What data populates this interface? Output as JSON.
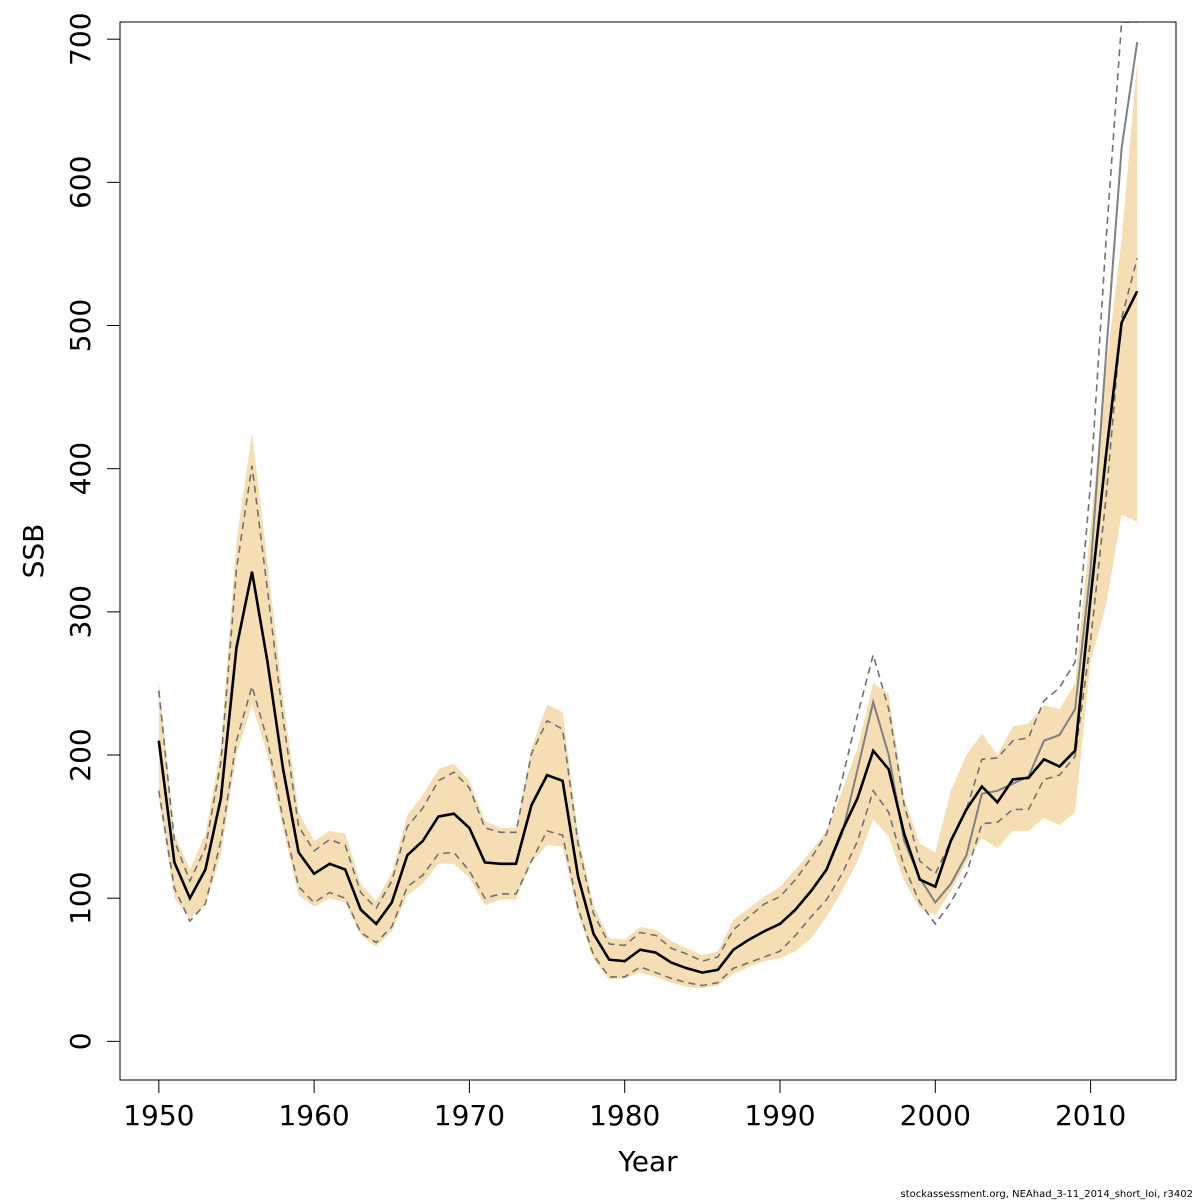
{
  "colors": {
    "band_fill": "#f5deb3",
    "main_line": "#000000",
    "prev_line": "#808080",
    "ci_dash": "#707070"
  },
  "chart_data": {
    "type": "line",
    "xlabel": "Year",
    "ylabel": "SSB",
    "xlim": [
      1947.5,
      2015.5
    ],
    "ylim": [
      -27,
      712
    ],
    "xticks": [
      1950,
      1960,
      1970,
      1980,
      1990,
      2000,
      2010
    ],
    "yticks": [
      0,
      100,
      200,
      300,
      400,
      500,
      600,
      700
    ],
    "grid": false,
    "legend": "none",
    "x": [
      1950,
      1951,
      1952,
      1953,
      1954,
      1955,
      1956,
      1957,
      1958,
      1959,
      1960,
      1961,
      1962,
      1963,
      1964,
      1965,
      1966,
      1967,
      1968,
      1969,
      1970,
      1971,
      1972,
      1973,
      1974,
      1975,
      1976,
      1977,
      1978,
      1979,
      1980,
      1981,
      1982,
      1983,
      1984,
      1985,
      1986,
      1987,
      1988,
      1989,
      1990,
      1991,
      1992,
      1993,
      1994,
      1995,
      1996,
      1997,
      1998,
      1999,
      2000,
      2001,
      2002,
      2003,
      2004,
      2005,
      2006,
      2007,
      2008,
      2009,
      2010,
      2011,
      2012,
      2013
    ],
    "series": [
      {
        "values": [
          210,
          125,
          100,
          120,
          170,
          275,
          328,
          265,
          190,
          132,
          117,
          124,
          120,
          92,
          82,
          97,
          130,
          140,
          157,
          159,
          149,
          125,
          124,
          124,
          165,
          186,
          182,
          115,
          75,
          57,
          56,
          64,
          62,
          55,
          51,
          48,
          50,
          64,
          71,
          77,
          82,
          92,
          105,
          120,
          147,
          170,
          203,
          190,
          145,
          113,
          108,
          140,
          162,
          178,
          167,
          183,
          184,
          197,
          192,
          203,
          310,
          410,
          502,
          524
        ]
      },
      {
        "values": [
          210,
          125,
          100,
          120,
          170,
          275,
          328,
          265,
          190,
          132,
          117,
          124,
          120,
          92,
          82,
          97,
          130,
          140,
          157,
          159,
          149,
          125,
          124,
          124,
          165,
          186,
          182,
          115,
          75,
          57,
          56,
          64,
          62,
          55,
          51,
          48,
          50,
          64,
          71,
          77,
          82,
          92,
          105,
          120,
          145,
          190,
          237,
          200,
          140,
          114,
          97,
          110,
          130,
          173,
          175,
          180,
          185,
          210,
          214,
          232,
          330,
          480,
          624,
          698
        ]
      },
      {
        "values": [
          245,
          140,
          112,
          135,
          195,
          330,
          402,
          315,
          225,
          150,
          133,
          141,
          137,
          104,
          93,
          112,
          150,
          163,
          182,
          188,
          177,
          149,
          146,
          146,
          201,
          224,
          218,
          138,
          89,
          68,
          67,
          76,
          74,
          65,
          61,
          56,
          59,
          78,
          87,
          96,
          101,
          113,
          128,
          145,
          183,
          228,
          270,
          232,
          165,
          126,
          117,
          140,
          162,
          197,
          198,
          210,
          212,
          238,
          247,
          265,
          390,
          560,
          712,
          712
        ]
      },
      {
        "values": [
          175,
          107,
          84,
          96,
          140,
          210,
          248,
          210,
          155,
          108,
          97,
          104,
          100,
          76,
          69,
          80,
          108,
          116,
          131,
          132,
          119,
          100,
          103,
          103,
          126,
          147,
          144,
          93,
          60,
          45,
          45,
          52,
          48,
          44,
          41,
          39,
          41,
          51,
          55,
          59,
          63,
          74,
          87,
          99,
          117,
          140,
          175,
          160,
          122,
          97,
          82,
          97,
          117,
          152,
          153,
          162,
          162,
          183,
          186,
          199,
          280,
          380,
          505,
          547
        ]
      },
      {
        "values": [
          252,
          145,
          120,
          145,
          205,
          350,
          425,
          335,
          240,
          160,
          140,
          147,
          145,
          110,
          98,
          118,
          158,
          172,
          190,
          194,
          182,
          154,
          149,
          149,
          205,
          235,
          230,
          145,
          95,
          72,
          71,
          80,
          78,
          70,
          65,
          60,
          63,
          85,
          93,
          101,
          108,
          120,
          133,
          147,
          175,
          205,
          250,
          243,
          170,
          138,
          132,
          175,
          200,
          215,
          200,
          220,
          222,
          235,
          232,
          250,
          360,
          470,
          560,
          685
        ]
      },
      {
        "values": [
          170,
          100,
          86,
          95,
          130,
          200,
          235,
          200,
          148,
          102,
          94,
          100,
          97,
          74,
          66,
          77,
          102,
          110,
          124,
          124,
          114,
          95,
          99,
          99,
          125,
          137,
          136,
          89,
          57,
          43,
          44,
          48,
          45,
          41,
          38,
          37,
          39,
          47,
          52,
          56,
          58,
          63,
          72,
          87,
          105,
          126,
          155,
          143,
          112,
          93,
          88,
          105,
          125,
          142,
          135,
          147,
          147,
          156,
          151,
          160,
          265,
          305,
          368,
          363
        ]
      }
    ]
  },
  "footer": {
    "credit": "stockassessment.org, NEAhad_3-11_2014_short_loi, r3402"
  }
}
